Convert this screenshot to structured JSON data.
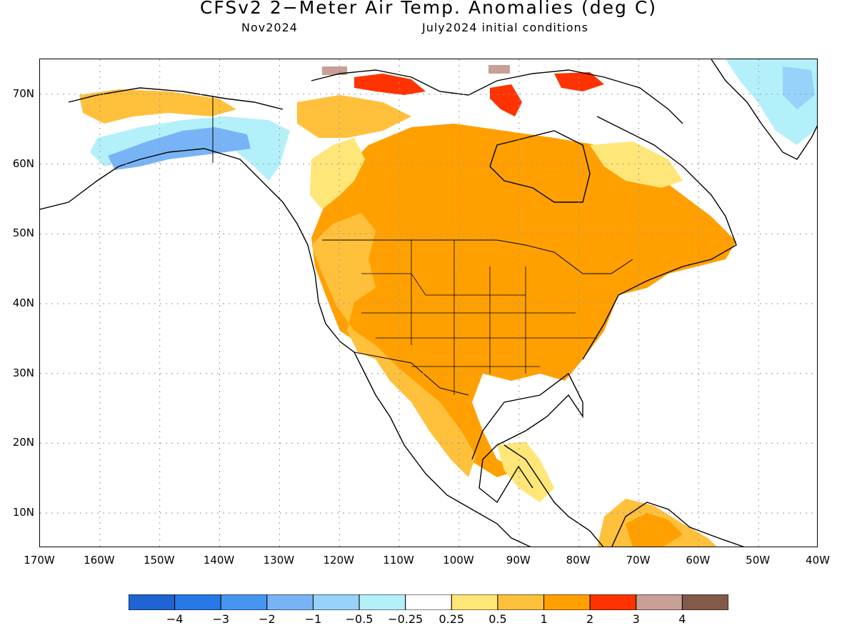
{
  "header": {
    "title": "CFSv2 2−Meter Air Temp. Anomalies (deg C)",
    "valid_month": "Nov2024",
    "initial_conditions": "July2024 initial conditions"
  },
  "axes": {
    "lat_labels": [
      "70N",
      "60N",
      "50N",
      "40N",
      "30N",
      "20N",
      "10N"
    ],
    "lon_labels": [
      "170W",
      "160W",
      "150W",
      "140W",
      "130W",
      "120W",
      "110W",
      "100W",
      "90W",
      "80W",
      "70W",
      "60W",
      "50W",
      "40W"
    ],
    "lat_values": [
      70,
      60,
      50,
      40,
      30,
      20,
      10
    ],
    "lon_values": [
      -170,
      -160,
      -150,
      -140,
      -130,
      -120,
      -110,
      -100,
      -90,
      -80,
      -70,
      -60,
      -50,
      -40
    ],
    "lon_range": [
      -170,
      -40
    ],
    "lat_range": [
      5,
      75
    ],
    "grid": "dotted"
  },
  "colors": {
    "neg_4": "#1e64d2",
    "neg_3": "#2878e6",
    "neg_2": "#4696f0",
    "neg_1": "#78b4f5",
    "neg_0_5": "#96d2fa",
    "neg_0_25": "#b4f0fa",
    "neutral": "#ffffff",
    "pos_0_25": "#ffe678",
    "pos_0_5": "#ffc03c",
    "pos_1": "#ffa000",
    "pos_2": "#ff9900",
    "pos_3": "#ff3300",
    "pos_4": "#c8a096",
    "pos_5": "#825a4a"
  },
  "legend": {
    "labels": [
      "−4",
      "−3",
      "−2",
      "−1",
      "−0.5",
      "−0.25",
      "0.25",
      "0.5",
      "1",
      "2",
      "3",
      "4"
    ],
    "bins": [
      {
        "color": "#1e64d2"
      },
      {
        "color": "#2878e6"
      },
      {
        "color": "#4696f0"
      },
      {
        "color": "#78b4f5"
      },
      {
        "color": "#96d2fa"
      },
      {
        "color": "#b4f0fa"
      },
      {
        "color": "#ffffff"
      },
      {
        "color": "#ffe678"
      },
      {
        "color": "#ffc03c"
      },
      {
        "color": "#ffa000"
      },
      {
        "color": "#ff3300"
      },
      {
        "color": "#c8a096"
      },
      {
        "color": "#825a4a"
      }
    ]
  },
  "map": {
    "region": "North America",
    "field": "2-meter air temperature anomaly forecast",
    "units": "deg C"
  }
}
